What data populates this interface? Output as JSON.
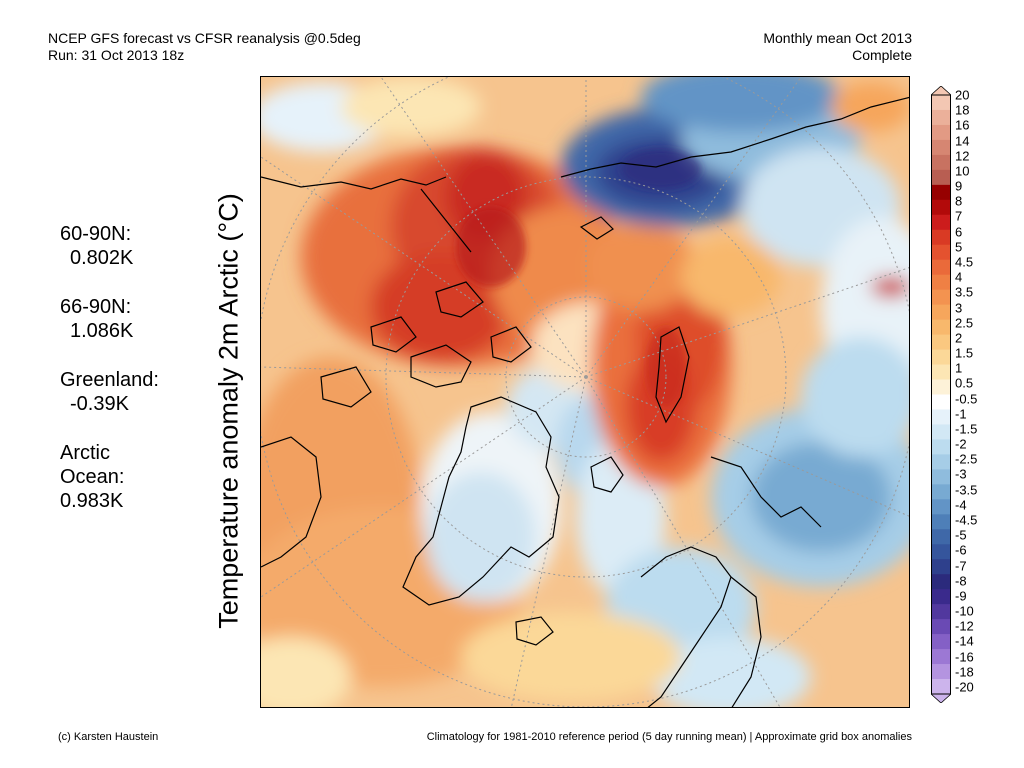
{
  "header": {
    "left_line1": "NCEP GFS forecast vs CFSR reanalysis @0.5deg",
    "left_line2": "Run: 31 Oct 2013 18z",
    "right_line1": "Monthly mean Oct 2013",
    "right_line2": "Complete"
  },
  "y_label": "Temperature anomaly 2m Arctic (°C)",
  "stats": [
    {
      "label": "60-90N:",
      "value": "0.802K"
    },
    {
      "label": "66-90N:",
      "value": "1.086K"
    },
    {
      "label": "Greenland:",
      "value": "-0.39K"
    },
    {
      "label": "Arctic Ocean:",
      "value": "0.983K"
    }
  ],
  "colorbar": {
    "labels": [
      "20",
      "18",
      "16",
      "14",
      "12",
      "10",
      "9",
      "8",
      "7",
      "6",
      "5",
      "4.5",
      "4",
      "3.5",
      "3",
      "2.5",
      "2",
      "1.5",
      "1",
      "0.5",
      "-0.5",
      "-1",
      "-1.5",
      "-2",
      "-2.5",
      "-3",
      "-3.5",
      "-4",
      "-4.5",
      "-5",
      "-6",
      "-7",
      "-8",
      "-9",
      "-10",
      "-12",
      "-14",
      "-16",
      "-18",
      "-20"
    ],
    "colors": [
      "#f3c7b3",
      "#ebb09a",
      "#e29a84",
      "#d68672",
      "#c87261",
      "#b85e52",
      "#960000",
      "#b20a0a",
      "#cc1c1c",
      "#d93a24",
      "#e4522f",
      "#ea6a3a",
      "#ef8044",
      "#f39350",
      "#f6a65c",
      "#f8b86c",
      "#fac880",
      "#fbd898",
      "#fce6b4",
      "#fdf2d8",
      "#ffffff",
      "#e6f2fa",
      "#d2e8f5",
      "#bcdcef",
      "#a6cde7",
      "#8fbcdd",
      "#78aad2",
      "#6294c6",
      "#4e7fb8",
      "#3f68a8",
      "#35559c",
      "#2e408c",
      "#2b2a7c",
      "#3a2a8c",
      "#51389e",
      "#6a4ab4",
      "#8460c6",
      "#9c78d4",
      "#b494e0",
      "#ccb4ec"
    ]
  },
  "map": {
    "colors": {
      "ocean_base": "#f6c48e",
      "land_line": "#000000",
      "grid": "#9a9a9a"
    }
  },
  "footer": {
    "left": "(c) Karsten Haustein",
    "right": "Climatology for 1981-2010 reference period (5 day running mean) | Approximate grid box anomalies"
  }
}
